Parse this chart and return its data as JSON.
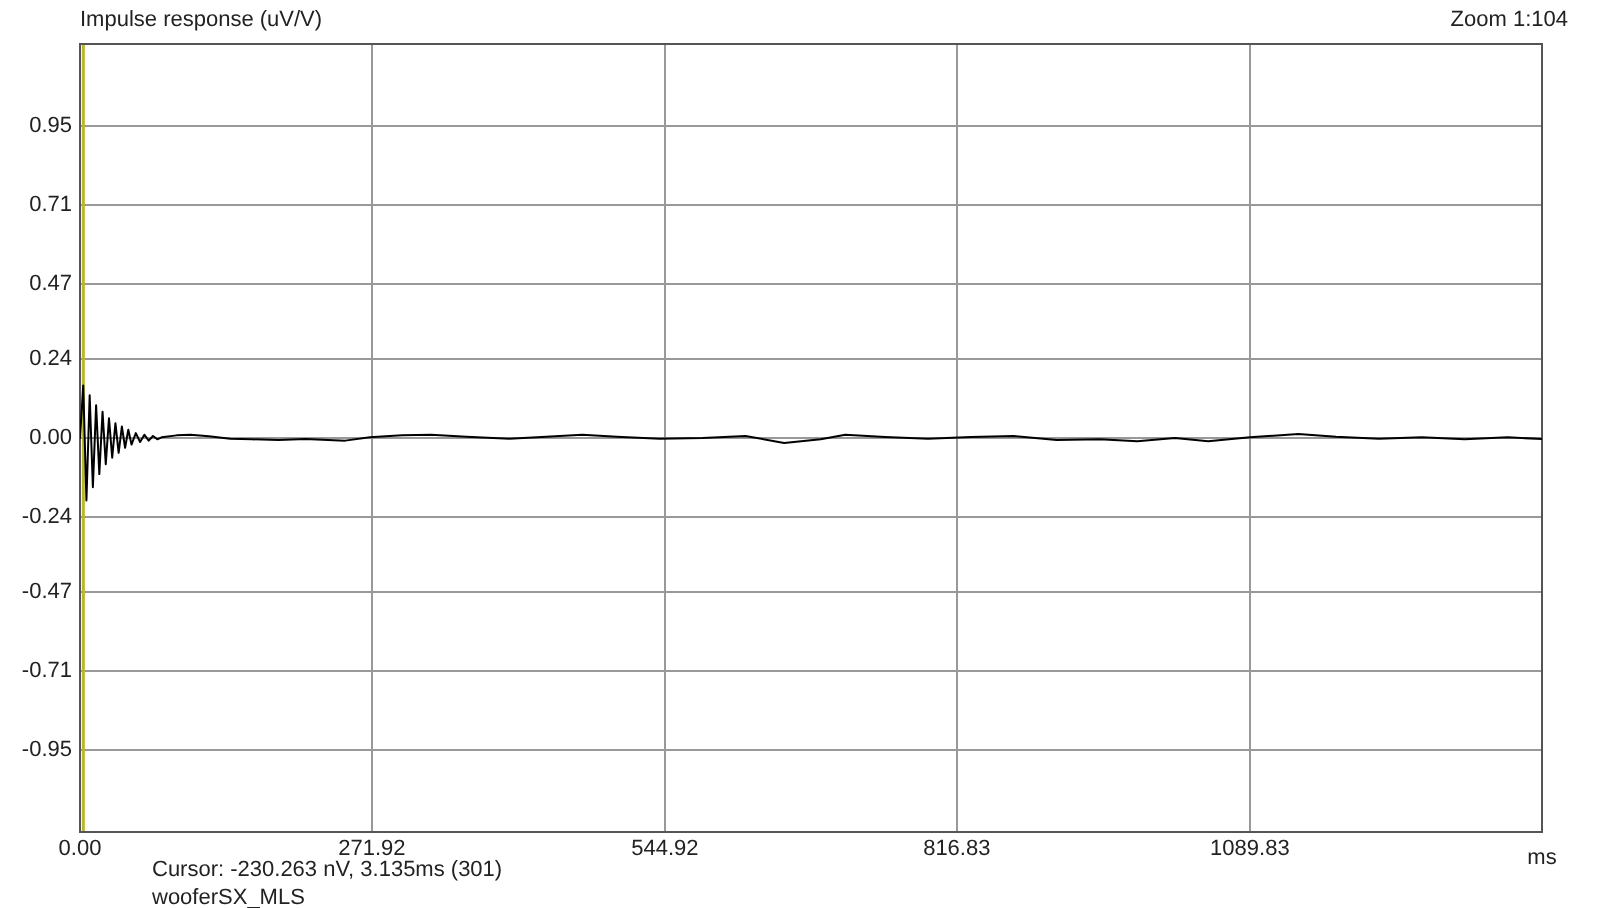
{
  "chart_data": {
    "type": "line",
    "title": "Impulse response (uV/V)",
    "xlabel": "ms",
    "annotations": [
      "Zoom 1:104",
      "Cursor: -230.263 nV, 3.135ms (301)",
      "wooferSX_MLS"
    ],
    "x": [
      0,
      3,
      6,
      9,
      12,
      15,
      18,
      21,
      24,
      27,
      30,
      33,
      36,
      39,
      42,
      45,
      48,
      52,
      56,
      60,
      64,
      68,
      72,
      76,
      90,
      103,
      120,
      140,
      160,
      185,
      210,
      247,
      270,
      300,
      327,
      360,
      400,
      430,
      468,
      500,
      540,
      580,
      620,
      656,
      690,
      713,
      750,
      790,
      830,
      870,
      910,
      950,
      985,
      1020,
      1051,
      1090,
      1135,
      1170,
      1210,
      1250,
      1290,
      1330,
      1362
    ],
    "series": [
      {
        "color": "#000000",
        "values": [
          0,
          0.16,
          -0.19,
          0.13,
          -0.15,
          0.1,
          -0.11,
          0.08,
          -0.08,
          0.06,
          -0.06,
          0.045,
          -0.045,
          0.035,
          -0.03,
          0.025,
          -0.02,
          0.015,
          -0.012,
          0.01,
          -0.008,
          0.006,
          -0.004,
          0.002,
          0.008,
          0.01,
          0.005,
          -0.002,
          -0.004,
          -0.006,
          -0.003,
          -0.008,
          0.002,
          0.008,
          0.01,
          0.004,
          -0.002,
          0.003,
          0.01,
          0.004,
          -0.002,
          0,
          0.006,
          -0.015,
          -0.004,
          0.01,
          0.003,
          -0.002,
          0.003,
          0.006,
          -0.006,
          -0.004,
          -0.01,
          0,
          -0.01,
          0.002,
          0.012,
          0.004,
          -0.002,
          0.002,
          -0.004,
          0.002,
          -0.003
        ]
      }
    ],
    "xlim": [
      0,
      1362
    ],
    "xticks": [
      {
        "value": 0,
        "label": "0.00"
      },
      271.92,
      544.92,
      816.83,
      1089.83
    ],
    "ylim": [
      -1.2,
      1.2
    ],
    "yticks": [
      -0.95,
      -0.71,
      -0.47,
      -0.24,
      {
        "value": 0,
        "label": "0.00"
      },
      0.24,
      0.47,
      0.71,
      0.95
    ],
    "ref_lines": [
      {
        "axis": "x",
        "value": 3.135,
        "color": "#b8b830"
      }
    ],
    "grid": true,
    "legend": false,
    "marker": "none",
    "line_style": "solid"
  }
}
